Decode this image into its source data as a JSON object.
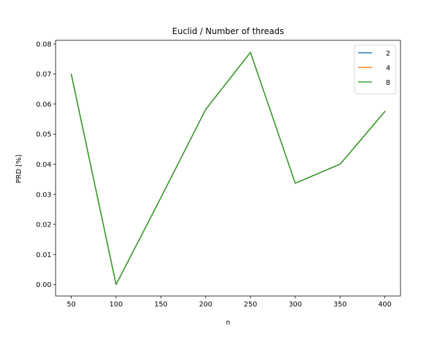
{
  "chart_data": {
    "type": "line",
    "title": "Euclid / Number of threads",
    "xlabel": "n",
    "ylabel": "PRD [%]",
    "x": [
      50,
      100,
      150,
      200,
      250,
      300,
      350,
      400
    ],
    "xticks": [
      "50",
      "100",
      "150",
      "200",
      "250",
      "300",
      "350",
      "400"
    ],
    "yticks": [
      "0.00",
      "0.01",
      "0.02",
      "0.03",
      "0.04",
      "0.05",
      "0.06",
      "0.07",
      "0.08"
    ],
    "xlim": [
      32.5,
      417.5
    ],
    "ylim": [
      -0.0038,
      0.0812
    ],
    "grid": false,
    "legend_position": "top-right",
    "series": [
      {
        "name": "2",
        "color": "#1f77b4",
        "values": [
          0.0699,
          0.0,
          0.0289,
          0.0582,
          0.0772,
          0.0337,
          0.04,
          0.0575
        ]
      },
      {
        "name": "4",
        "color": "#ff7f0e",
        "values": [
          0.0699,
          0.0,
          0.0289,
          0.0582,
          0.0772,
          0.0337,
          0.04,
          0.0575
        ]
      },
      {
        "name": "8",
        "color": "#2ca02c",
        "values": [
          0.0699,
          0.0,
          0.0289,
          0.0582,
          0.0772,
          0.0337,
          0.04,
          0.0575
        ]
      }
    ]
  }
}
